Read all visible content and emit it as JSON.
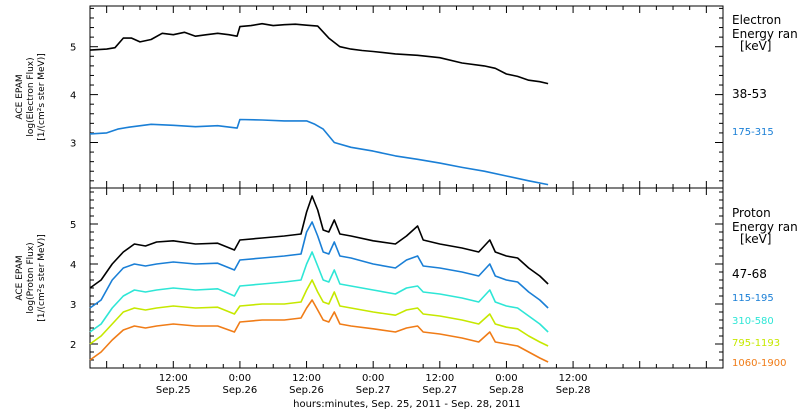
{
  "instrument_label": "ACE EPAM",
  "x_axis": {
    "label": "hours:minutes, Sep. 25, 2011 - Sep. 28, 2011",
    "range_hours": [
      -3,
      111
    ],
    "ticks": [
      {
        "h": 12,
        "time": "12:00",
        "date": "Sep.25"
      },
      {
        "h": 24,
        "time": "0:00",
        "date": "Sep.26"
      },
      {
        "h": 36,
        "time": "12:00",
        "date": "Sep.26"
      },
      {
        "h": 48,
        "time": "0:00",
        "date": "Sep.27"
      },
      {
        "h": 60,
        "time": "12:00",
        "date": "Sep.27"
      },
      {
        "h": 72,
        "time": "0:00",
        "date": "Sep.28"
      },
      {
        "h": 84,
        "time": "12:00",
        "date": "Sep.28"
      }
    ]
  },
  "chart_data": [
    {
      "type": "line",
      "panel": "electron",
      "ylabel": "log(Electron Flux)",
      "yunit": "[1/(cm²s ster MeV)]",
      "ylim": [
        2.05,
        5.85
      ],
      "yticks": [
        3,
        4,
        5
      ],
      "legend_title": "Electron",
      "legend_subtitle": "Energy ran",
      "legend_unit": "[keV]",
      "series": [
        {
          "name": "38-53",
          "color": "#000000",
          "points": [
            [
              -3,
              4.93
            ],
            [
              0,
              4.95
            ],
            [
              1.5,
              4.98
            ],
            [
              3,
              5.18
            ],
            [
              4.5,
              5.18
            ],
            [
              6,
              5.1
            ],
            [
              8,
              5.15
            ],
            [
              10,
              5.28
            ],
            [
              12,
              5.25
            ],
            [
              14,
              5.3
            ],
            [
              16,
              5.22
            ],
            [
              18,
              5.25
            ],
            [
              20,
              5.28
            ],
            [
              22,
              5.25
            ],
            [
              23.5,
              5.22
            ],
            [
              24,
              5.42
            ],
            [
              26,
              5.44
            ],
            [
              28,
              5.48
            ],
            [
              30,
              5.44
            ],
            [
              32,
              5.46
            ],
            [
              34,
              5.47
            ],
            [
              36,
              5.45
            ],
            [
              38,
              5.43
            ],
            [
              40,
              5.18
            ],
            [
              42,
              5.0
            ],
            [
              44,
              4.95
            ],
            [
              46,
              4.92
            ],
            [
              48,
              4.9
            ],
            [
              52,
              4.85
            ],
            [
              56,
              4.82
            ],
            [
              60,
              4.77
            ],
            [
              64,
              4.66
            ],
            [
              68,
              4.6
            ],
            [
              70,
              4.55
            ],
            [
              72,
              4.43
            ],
            [
              74,
              4.38
            ],
            [
              76,
              4.3
            ],
            [
              78,
              4.27
            ],
            [
              79.5,
              4.23
            ]
          ]
        },
        {
          "name": "175-315",
          "color": "#1a7fd6",
          "points": [
            [
              -3,
              3.18
            ],
            [
              0,
              3.2
            ],
            [
              2,
              3.28
            ],
            [
              4,
              3.32
            ],
            [
              8,
              3.38
            ],
            [
              12,
              3.36
            ],
            [
              16,
              3.33
            ],
            [
              20,
              3.35
            ],
            [
              23.5,
              3.3
            ],
            [
              24,
              3.48
            ],
            [
              28,
              3.47
            ],
            [
              32,
              3.45
            ],
            [
              36,
              3.45
            ],
            [
              37.5,
              3.38
            ],
            [
              39,
              3.28
            ],
            [
              41,
              3.0
            ],
            [
              44,
              2.9
            ],
            [
              48,
              2.82
            ],
            [
              52,
              2.72
            ],
            [
              56,
              2.65
            ],
            [
              60,
              2.57
            ],
            [
              64,
              2.48
            ],
            [
              68,
              2.4
            ],
            [
              72,
              2.3
            ],
            [
              76,
              2.2
            ],
            [
              79.5,
              2.12
            ]
          ]
        }
      ]
    },
    {
      "type": "line",
      "panel": "proton",
      "ylabel": "log(Proton Flux)",
      "yunit": "[1/(cm²s ster MeV)]",
      "ylim": [
        1.4,
        5.9
      ],
      "yticks": [
        2,
        3,
        4,
        5
      ],
      "legend_title": "Proton",
      "legend_subtitle": "Energy ran",
      "legend_unit": "[keV]",
      "series": [
        {
          "name": "47-68",
          "color": "#000000",
          "points": [
            [
              -3,
              3.4
            ],
            [
              -1,
              3.6
            ],
            [
              1,
              4.0
            ],
            [
              3,
              4.3
            ],
            [
              5,
              4.5
            ],
            [
              7,
              4.45
            ],
            [
              9,
              4.55
            ],
            [
              12,
              4.58
            ],
            [
              16,
              4.5
            ],
            [
              20,
              4.52
            ],
            [
              23,
              4.35
            ],
            [
              24,
              4.6
            ],
            [
              28,
              4.65
            ],
            [
              32,
              4.7
            ],
            [
              35,
              4.75
            ],
            [
              36,
              5.3
            ],
            [
              37,
              5.7
            ],
            [
              38,
              5.35
            ],
            [
              39,
              4.85
            ],
            [
              40,
              4.8
            ],
            [
              41,
              5.1
            ],
            [
              42,
              4.75
            ],
            [
              44,
              4.7
            ],
            [
              48,
              4.58
            ],
            [
              52,
              4.5
            ],
            [
              54,
              4.7
            ],
            [
              56,
              4.95
            ],
            [
              57,
              4.6
            ],
            [
              60,
              4.5
            ],
            [
              64,
              4.4
            ],
            [
              67,
              4.3
            ],
            [
              69,
              4.6
            ],
            [
              70,
              4.3
            ],
            [
              72,
              4.2
            ],
            [
              74,
              4.15
            ],
            [
              76,
              3.9
            ],
            [
              78,
              3.7
            ],
            [
              79.5,
              3.5
            ]
          ]
        },
        {
          "name": "115-195",
          "color": "#1a7fd6",
          "points": [
            [
              -3,
              2.9
            ],
            [
              -1,
              3.1
            ],
            [
              1,
              3.6
            ],
            [
              3,
              3.9
            ],
            [
              5,
              4.0
            ],
            [
              7,
              3.95
            ],
            [
              9,
              4.0
            ],
            [
              12,
              4.05
            ],
            [
              16,
              4.0
            ],
            [
              20,
              4.02
            ],
            [
              23,
              3.85
            ],
            [
              24,
              4.1
            ],
            [
              28,
              4.15
            ],
            [
              32,
              4.2
            ],
            [
              35,
              4.25
            ],
            [
              36,
              4.8
            ],
            [
              37,
              5.05
            ],
            [
              38,
              4.7
            ],
            [
              39,
              4.3
            ],
            [
              40,
              4.25
            ],
            [
              41,
              4.55
            ],
            [
              42,
              4.2
            ],
            [
              44,
              4.15
            ],
            [
              48,
              4.0
            ],
            [
              52,
              3.9
            ],
            [
              54,
              4.1
            ],
            [
              56,
              4.2
            ],
            [
              57,
              3.95
            ],
            [
              60,
              3.9
            ],
            [
              64,
              3.8
            ],
            [
              67,
              3.7
            ],
            [
              69,
              4.0
            ],
            [
              70,
              3.7
            ],
            [
              72,
              3.6
            ],
            [
              74,
              3.55
            ],
            [
              76,
              3.3
            ],
            [
              78,
              3.1
            ],
            [
              79.5,
              2.9
            ]
          ]
        },
        {
          "name": "310-580",
          "color": "#2ee6d6",
          "points": [
            [
              -3,
              2.3
            ],
            [
              -1,
              2.5
            ],
            [
              1,
              2.9
            ],
            [
              3,
              3.2
            ],
            [
              5,
              3.35
            ],
            [
              7,
              3.3
            ],
            [
              9,
              3.35
            ],
            [
              12,
              3.4
            ],
            [
              16,
              3.35
            ],
            [
              20,
              3.38
            ],
            [
              23,
              3.2
            ],
            [
              24,
              3.45
            ],
            [
              28,
              3.5
            ],
            [
              32,
              3.55
            ],
            [
              35,
              3.6
            ],
            [
              36,
              4.0
            ],
            [
              37,
              4.3
            ],
            [
              38,
              3.95
            ],
            [
              39,
              3.6
            ],
            [
              40,
              3.55
            ],
            [
              41,
              3.85
            ],
            [
              42,
              3.5
            ],
            [
              44,
              3.45
            ],
            [
              48,
              3.35
            ],
            [
              52,
              3.25
            ],
            [
              54,
              3.4
            ],
            [
              56,
              3.45
            ],
            [
              57,
              3.3
            ],
            [
              60,
              3.25
            ],
            [
              64,
              3.15
            ],
            [
              67,
              3.05
            ],
            [
              69,
              3.35
            ],
            [
              70,
              3.05
            ],
            [
              72,
              2.95
            ],
            [
              74,
              2.9
            ],
            [
              76,
              2.7
            ],
            [
              78,
              2.5
            ],
            [
              79.5,
              2.3
            ]
          ]
        },
        {
          "name": "795-1193",
          "color": "#c6e800",
          "points": [
            [
              -3,
              2.0
            ],
            [
              -1,
              2.2
            ],
            [
              1,
              2.5
            ],
            [
              3,
              2.8
            ],
            [
              5,
              2.9
            ],
            [
              7,
              2.85
            ],
            [
              9,
              2.9
            ],
            [
              12,
              2.95
            ],
            [
              16,
              2.9
            ],
            [
              20,
              2.92
            ],
            [
              23,
              2.75
            ],
            [
              24,
              2.95
            ],
            [
              28,
              3.0
            ],
            [
              32,
              3.0
            ],
            [
              35,
              3.05
            ],
            [
              36,
              3.35
            ],
            [
              37,
              3.6
            ],
            [
              38,
              3.3
            ],
            [
              39,
              3.05
            ],
            [
              40,
              3.0
            ],
            [
              41,
              3.3
            ],
            [
              42,
              2.95
            ],
            [
              44,
              2.9
            ],
            [
              48,
              2.8
            ],
            [
              52,
              2.72
            ],
            [
              54,
              2.85
            ],
            [
              56,
              2.9
            ],
            [
              57,
              2.75
            ],
            [
              60,
              2.7
            ],
            [
              64,
              2.6
            ],
            [
              67,
              2.5
            ],
            [
              69,
              2.75
            ],
            [
              70,
              2.5
            ],
            [
              72,
              2.42
            ],
            [
              74,
              2.38
            ],
            [
              76,
              2.2
            ],
            [
              78,
              2.05
            ],
            [
              79.5,
              1.95
            ]
          ]
        },
        {
          "name": "1060-1900",
          "color": "#f07c17",
          "points": [
            [
              -3,
              1.6
            ],
            [
              -1,
              1.8
            ],
            [
              1,
              2.1
            ],
            [
              3,
              2.35
            ],
            [
              5,
              2.45
            ],
            [
              7,
              2.4
            ],
            [
              9,
              2.45
            ],
            [
              12,
              2.5
            ],
            [
              16,
              2.45
            ],
            [
              20,
              2.45
            ],
            [
              23,
              2.3
            ],
            [
              24,
              2.55
            ],
            [
              28,
              2.6
            ],
            [
              32,
              2.6
            ],
            [
              35,
              2.65
            ],
            [
              36,
              2.9
            ],
            [
              37,
              3.1
            ],
            [
              38,
              2.85
            ],
            [
              39,
              2.6
            ],
            [
              40,
              2.55
            ],
            [
              41,
              2.8
            ],
            [
              42,
              2.5
            ],
            [
              44,
              2.45
            ],
            [
              48,
              2.38
            ],
            [
              52,
              2.3
            ],
            [
              54,
              2.4
            ],
            [
              56,
              2.45
            ],
            [
              57,
              2.3
            ],
            [
              60,
              2.25
            ],
            [
              64,
              2.15
            ],
            [
              67,
              2.05
            ],
            [
              69,
              2.3
            ],
            [
              70,
              2.05
            ],
            [
              72,
              2.0
            ],
            [
              74,
              1.95
            ],
            [
              76,
              1.8
            ],
            [
              78,
              1.65
            ],
            [
              79.5,
              1.55
            ]
          ]
        }
      ]
    }
  ]
}
